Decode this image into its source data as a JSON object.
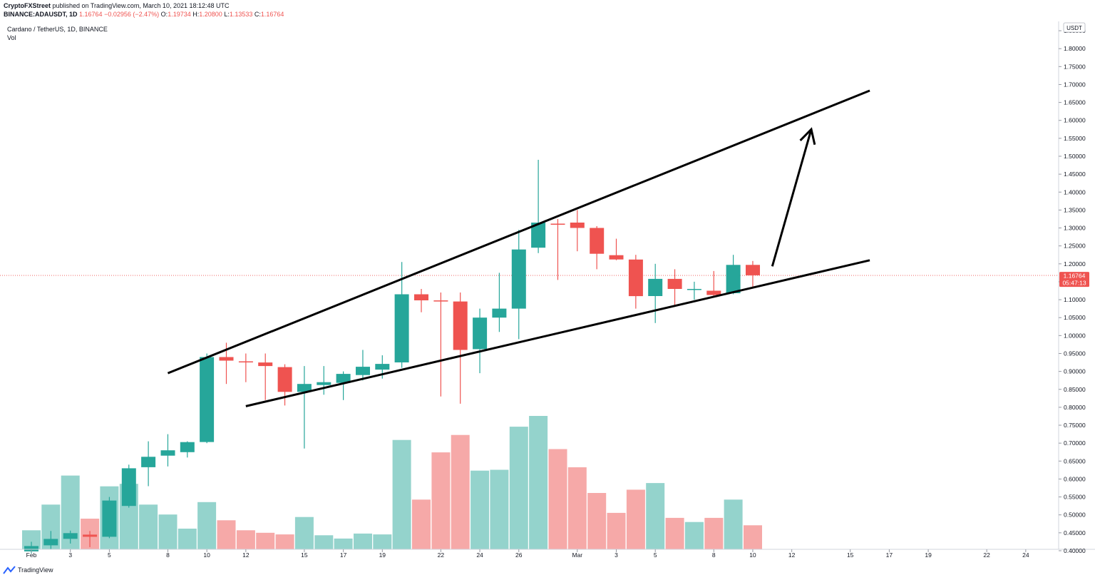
{
  "header": {
    "publisher": "CryptoFXStreet",
    "published_text": " published on TradingView.com, March 10, 2021 18:12:48 UTC",
    "symbol": "BINANCE:ADAUSDT, 1D",
    "last": "1.16764",
    "change": "−0.02956 (−2.47%)",
    "o_label": "O:",
    "o": "1.19734",
    "h_label": "H:",
    "h": "1.20800",
    "l_label": "L:",
    "l": "1.13533",
    "c_label": "C:",
    "c": "1.16764"
  },
  "legend": {
    "title": "Cardano / TetherUS, 1D, BINANCE",
    "vol": "Vol"
  },
  "footer": {
    "brand": "TradingView"
  },
  "price_tag": {
    "price": "1.16764",
    "countdown": "05:47:13"
  },
  "colors": {
    "up": "#26a69a",
    "down": "#ef5350",
    "vol_up": "#94d3cc",
    "vol_down": "#f6a9a8",
    "last_line": "#ef5350",
    "axis_line": "#d1d4dc",
    "annotation": "#000000"
  },
  "chart_data": {
    "type": "candlestick",
    "currency": "USDT",
    "ylim": [
      0.39,
      1.87
    ],
    "y_ticks": [
      "1.85000",
      "1.80000",
      "1.75000",
      "1.70000",
      "1.65000",
      "1.60000",
      "1.55000",
      "1.50000",
      "1.45000",
      "1.40000",
      "1.35000",
      "1.30000",
      "1.25000",
      "1.20000",
      "1.15000",
      "1.10000",
      "1.05000",
      "1.00000",
      "0.95000",
      "0.90000",
      "0.85000",
      "0.80000",
      "0.75000",
      "0.70000",
      "0.65000",
      "0.60000",
      "0.55000",
      "0.50000",
      "0.45000",
      "0.40000"
    ],
    "x_ticks": [
      {
        "date": "2021-02-01",
        "label": "Feb"
      },
      {
        "date": "2021-02-03",
        "label": "3"
      },
      {
        "date": "2021-02-05",
        "label": "5"
      },
      {
        "date": "2021-02-08",
        "label": "8"
      },
      {
        "date": "2021-02-10",
        "label": "10"
      },
      {
        "date": "2021-02-12",
        "label": "12"
      },
      {
        "date": "2021-02-15",
        "label": "15"
      },
      {
        "date": "2021-02-17",
        "label": "17"
      },
      {
        "date": "2021-02-19",
        "label": "19"
      },
      {
        "date": "2021-02-22",
        "label": "22"
      },
      {
        "date": "2021-02-24",
        "label": "24"
      },
      {
        "date": "2021-02-26",
        "label": "26"
      },
      {
        "date": "2021-03-01",
        "label": "Mar"
      },
      {
        "date": "2021-03-03",
        "label": "3"
      },
      {
        "date": "2021-03-05",
        "label": "5"
      },
      {
        "date": "2021-03-08",
        "label": "8"
      },
      {
        "date": "2021-03-10",
        "label": "10"
      },
      {
        "date": "2021-03-12",
        "label": "12"
      },
      {
        "date": "2021-03-15",
        "label": "15"
      },
      {
        "date": "2021-03-17",
        "label": "17"
      },
      {
        "date": "2021-03-19",
        "label": "19"
      },
      {
        "date": "2021-03-22",
        "label": "22"
      },
      {
        "date": "2021-03-24",
        "label": "24"
      }
    ],
    "candles": [
      {
        "date": "2021-02-01",
        "o": 0.398,
        "h": 0.425,
        "l": 0.393,
        "c": 0.413,
        "vol": 0.23
      },
      {
        "date": "2021-02-02",
        "o": 0.415,
        "h": 0.455,
        "l": 0.405,
        "c": 0.433,
        "vol": 0.54
      },
      {
        "date": "2021-02-03",
        "o": 0.433,
        "h": 0.456,
        "l": 0.42,
        "c": 0.449,
        "vol": 0.89
      },
      {
        "date": "2021-02-04",
        "o": 0.445,
        "h": 0.455,
        "l": 0.41,
        "c": 0.439,
        "vol": 0.37
      },
      {
        "date": "2021-02-05",
        "o": 0.439,
        "h": 0.55,
        "l": 0.435,
        "c": 0.54,
        "vol": 0.76
      },
      {
        "date": "2021-02-06",
        "o": 0.525,
        "h": 0.64,
        "l": 0.52,
        "c": 0.63,
        "vol": 0.79
      },
      {
        "date": "2021-02-07",
        "o": 0.633,
        "h": 0.705,
        "l": 0.58,
        "c": 0.662,
        "vol": 0.54
      },
      {
        "date": "2021-02-08",
        "o": 0.665,
        "h": 0.725,
        "l": 0.635,
        "c": 0.68,
        "vol": 0.42
      },
      {
        "date": "2021-02-09",
        "o": 0.675,
        "h": 0.705,
        "l": 0.66,
        "c": 0.703,
        "vol": 0.25
      },
      {
        "date": "2021-02-10",
        "o": 0.703,
        "h": 0.95,
        "l": 0.7,
        "c": 0.94,
        "vol": 0.57
      },
      {
        "date": "2021-02-11",
        "o": 0.94,
        "h": 0.98,
        "l": 0.865,
        "c": 0.93,
        "vol": 0.35
      },
      {
        "date": "2021-02-12",
        "o": 0.928,
        "h": 0.95,
        "l": 0.87,
        "c": 0.925,
        "vol": 0.23
      },
      {
        "date": "2021-02-13",
        "o": 0.925,
        "h": 0.95,
        "l": 0.82,
        "c": 0.915,
        "vol": 0.2
      },
      {
        "date": "2021-02-14",
        "o": 0.912,
        "h": 0.92,
        "l": 0.805,
        "c": 0.843,
        "vol": 0.18
      },
      {
        "date": "2021-02-15",
        "o": 0.843,
        "h": 0.915,
        "l": 0.685,
        "c": 0.865,
        "vol": 0.39
      },
      {
        "date": "2021-02-16",
        "o": 0.862,
        "h": 0.915,
        "l": 0.835,
        "c": 0.87,
        "vol": 0.17
      },
      {
        "date": "2021-02-17",
        "o": 0.868,
        "h": 0.9,
        "l": 0.82,
        "c": 0.893,
        "vol": 0.13
      },
      {
        "date": "2021-02-18",
        "o": 0.89,
        "h": 0.96,
        "l": 0.875,
        "c": 0.913,
        "vol": 0.19
      },
      {
        "date": "2021-02-19",
        "o": 0.905,
        "h": 0.945,
        "l": 0.88,
        "c": 0.921,
        "vol": 0.18
      },
      {
        "date": "2021-02-20",
        "o": 0.925,
        "h": 1.205,
        "l": 0.91,
        "c": 1.115,
        "vol": 1.32
      },
      {
        "date": "2021-02-21",
        "o": 1.115,
        "h": 1.13,
        "l": 1.065,
        "c": 1.098,
        "vol": 0.6
      },
      {
        "date": "2021-02-22",
        "o": 1.098,
        "h": 1.12,
        "l": 0.83,
        "c": 1.095,
        "vol": 1.17
      },
      {
        "date": "2021-02-23",
        "o": 1.095,
        "h": 1.12,
        "l": 0.81,
        "c": 0.96,
        "vol": 1.38
      },
      {
        "date": "2021-02-24",
        "o": 0.962,
        "h": 1.075,
        "l": 0.895,
        "c": 1.05,
        "vol": 0.95
      },
      {
        "date": "2021-02-25",
        "o": 1.05,
        "h": 1.175,
        "l": 1.01,
        "c": 1.075,
        "vol": 0.96
      },
      {
        "date": "2021-02-26",
        "o": 1.075,
        "h": 1.295,
        "l": 0.99,
        "c": 1.24,
        "vol": 1.48
      },
      {
        "date": "2021-02-27",
        "o": 1.245,
        "h": 1.49,
        "l": 1.23,
        "c": 1.315,
        "vol": 1.61
      },
      {
        "date": "2021-02-28",
        "o": 1.312,
        "h": 1.325,
        "l": 1.155,
        "c": 1.31,
        "vol": 1.21
      },
      {
        "date": "2021-03-01",
        "o": 1.315,
        "h": 1.35,
        "l": 1.235,
        "c": 1.3,
        "vol": 0.99
      },
      {
        "date": "2021-03-02",
        "o": 1.3,
        "h": 1.305,
        "l": 1.185,
        "c": 1.228,
        "vol": 0.68
      },
      {
        "date": "2021-03-03",
        "o": 1.224,
        "h": 1.27,
        "l": 1.21,
        "c": 1.212,
        "vol": 0.44
      },
      {
        "date": "2021-03-04",
        "o": 1.212,
        "h": 1.225,
        "l": 1.075,
        "c": 1.11,
        "vol": 0.72
      },
      {
        "date": "2021-03-05",
        "o": 1.11,
        "h": 1.2,
        "l": 1.035,
        "c": 1.158,
        "vol": 0.8
      },
      {
        "date": "2021-03-06",
        "o": 1.158,
        "h": 1.185,
        "l": 1.08,
        "c": 1.13,
        "vol": 0.38
      },
      {
        "date": "2021-03-07",
        "o": 1.13,
        "h": 1.15,
        "l": 1.1,
        "c": 1.13,
        "vol": 0.33
      },
      {
        "date": "2021-03-08",
        "o": 1.125,
        "h": 1.18,
        "l": 1.11,
        "c": 1.113,
        "vol": 0.38
      },
      {
        "date": "2021-03-09",
        "o": 1.118,
        "h": 1.225,
        "l": 1.115,
        "c": 1.197,
        "vol": 0.6
      },
      {
        "date": "2021-03-10",
        "o": 1.197,
        "h": 1.208,
        "l": 1.135,
        "c": 1.168,
        "vol": 0.29
      }
    ],
    "volume_max": 1.61,
    "last_price": 1.16764,
    "trendlines": [
      {
        "p1": {
          "date": "2021-02-08",
          "price": 0.895
        },
        "p2": {
          "date": "2021-03-16",
          "price": 1.683
        }
      },
      {
        "p1": {
          "date": "2021-02-12",
          "price": 0.803
        },
        "p2": {
          "date": "2021-03-16",
          "price": 1.21
        }
      }
    ],
    "arrow": {
      "p1": {
        "date": "2021-03-11",
        "price": 1.193
      },
      "p2": {
        "date": "2021-03-13",
        "price": 1.575
      }
    }
  }
}
